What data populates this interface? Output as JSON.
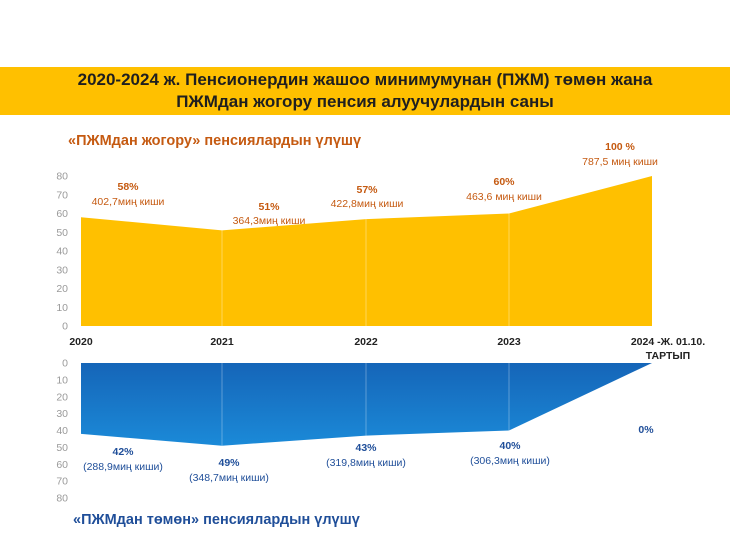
{
  "title": {
    "line1": "2020-2024 ж. Пенсионердин жашоо минимумунан (ПЖМ) төмөн жана",
    "line2": "ПЖМдан жогору пенсия алуучулардын саны"
  },
  "upper_label": "«ПЖМдан жогору» пенсиялардын үлүшү",
  "lower_label": "«ПЖМдан төмөн» пенсиялардын үлүшү",
  "colors": {
    "title_bar": "#ffc000",
    "upper_area": "#ffc000",
    "lower_area": "#0070c0",
    "upper_text": "#c55a11",
    "lower_text": "#1f4e99"
  },
  "chart_data": [
    {
      "type": "area",
      "title": "«ПЖМдан жогору» пенсиялардын үлүшү",
      "categories": [
        "2020",
        "2021",
        "2022",
        "2023",
        "2024 -Ж. 01.10. ТАРТЫП"
      ],
      "category_labels": [
        [
          "2020"
        ],
        [
          "2021"
        ],
        [
          "2022"
        ],
        [
          "2023"
        ],
        [
          "2024 -Ж. 01.10.",
          "ТАРТЫП"
        ]
      ],
      "values": [
        58,
        51,
        57,
        60,
        100
      ],
      "ylim": [
        0,
        80
      ],
      "yticks": [
        0,
        10,
        20,
        30,
        40,
        50,
        60,
        70,
        80
      ],
      "data_labels": [
        {
          "pct": "58%",
          "count": "402,7миң киши"
        },
        {
          "pct": "51%",
          "count": "364,3миң киши"
        },
        {
          "pct": "57%",
          "count": "422,8миң киши"
        },
        {
          "pct": "60%",
          "count": "463,6 миң киши"
        },
        {
          "pct": "100 %",
          "count": "787,5 миң киши"
        }
      ]
    },
    {
      "type": "area",
      "title": "«ПЖМдан төмөн» пенсиялардын үлүшү",
      "categories": [
        "2020",
        "2021",
        "2022",
        "2023",
        "2024 -Ж. 01.10. ТАРТЫП"
      ],
      "values": [
        42,
        49,
        43,
        40,
        0
      ],
      "ylim": [
        0,
        80
      ],
      "y_inverted": true,
      "yticks": [
        0,
        10,
        20,
        30,
        40,
        50,
        60,
        70,
        80
      ],
      "data_labels": [
        {
          "pct": "42%",
          "count": "(288,9миң киши)"
        },
        {
          "pct": "49%",
          "count": "(348,7миң киши)"
        },
        {
          "pct": "43%",
          "count": "(319,8миң киши)"
        },
        {
          "pct": "40%",
          "count": "(306,3миң киши)"
        },
        {
          "pct": "0%",
          "count": ""
        }
      ]
    }
  ]
}
